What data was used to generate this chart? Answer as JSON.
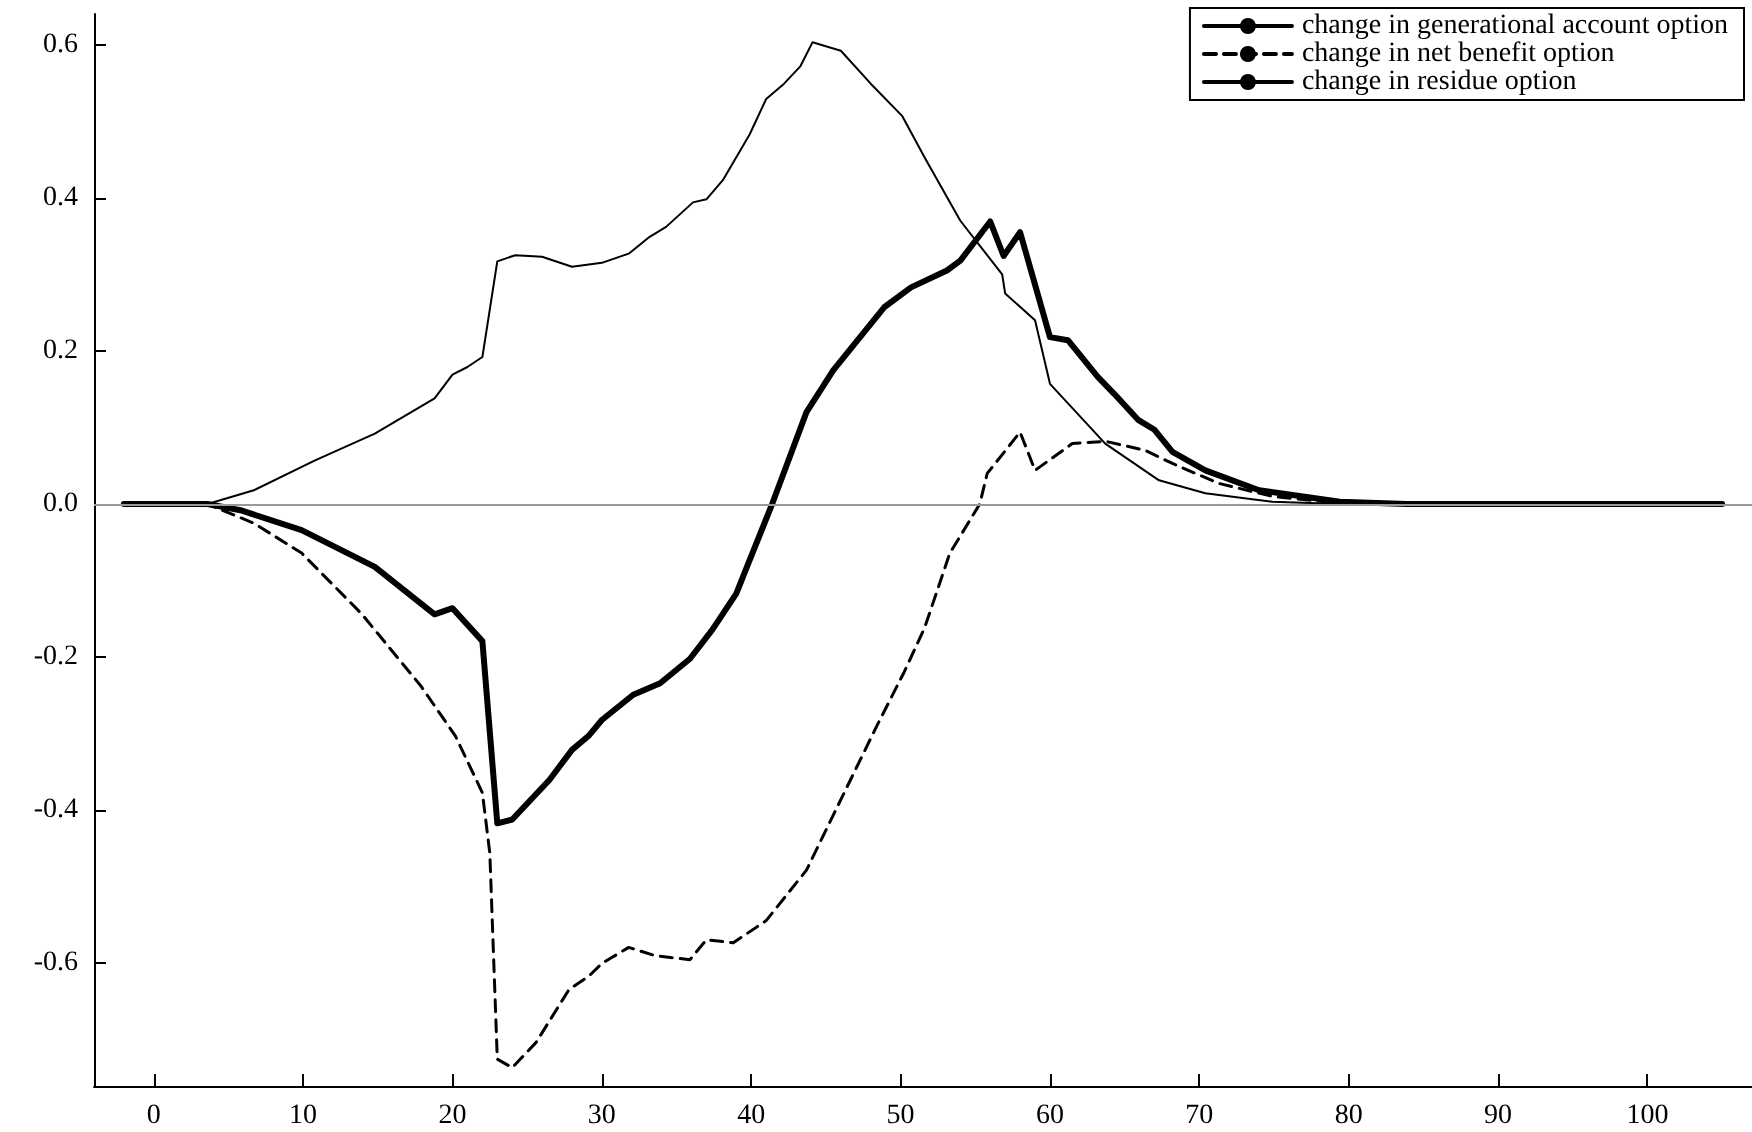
{
  "chart_data": {
    "type": "line",
    "xlim": [
      -4,
      107
    ],
    "xticks": [
      0,
      10,
      20,
      30,
      40,
      50,
      60,
      70,
      80,
      90,
      100
    ],
    "ylim": [
      -0.76,
      0.64
    ],
    "yticks": [
      -0.6,
      -0.4,
      -0.2,
      {
        "value": 0,
        "label": "0.0"
      },
      0.2,
      0.4,
      0.6
    ],
    "grid": false,
    "legend": "top right",
    "marker": "none",
    "ref_lines": [
      {
        "axis": "y",
        "value": 0,
        "color": "#999999"
      }
    ],
    "series": [
      {
        "name": "change in generational account option",
        "color": "#000000",
        "line_style": "solid",
        "x": [
          -2,
          3.6,
          5.8,
          9.9,
          14.8,
          18.8,
          20,
          22,
          23,
          24,
          26.5,
          28,
          29.1,
          30,
          32.1,
          33.9,
          35.9,
          37.4,
          39,
          39.9,
          41.4,
          43.7,
          45.5,
          48.9,
          50.7,
          53.1,
          54,
          56,
          56.9,
          58,
          60,
          61.2,
          63.2,
          64.3,
          65.9,
          67,
          68.2,
          70.4,
          74,
          79.4,
          83.9,
          105
        ],
        "values": [
          0,
          0,
          -0.008,
          -0.034,
          -0.082,
          -0.144,
          -0.136,
          -0.179,
          -0.417,
          -0.412,
          -0.36,
          -0.321,
          -0.303,
          -0.282,
          -0.249,
          -0.234,
          -0.202,
          -0.164,
          -0.117,
          -0.073,
          0,
          0.12,
          0.175,
          0.257,
          0.283,
          0.305,
          0.318,
          0.369,
          0.324,
          0.355,
          0.218,
          0.214,
          0.166,
          0.144,
          0.11,
          0.097,
          0.068,
          0.044,
          0.018,
          0.003,
          0,
          0
        ]
      },
      {
        "name": "change in net benefit option",
        "color": "#000000",
        "line_style": "dashed",
        "x": [
          -2,
          3.6,
          6.7,
          9.9,
          13.9,
          17.9,
          20.2,
          22,
          22.5,
          23,
          24,
          25.6,
          27.8,
          29.1,
          30,
          31.8,
          33.6,
          35.9,
          37,
          38.8,
          41,
          43.7,
          46.4,
          48.4,
          50.2,
          51.6,
          53.3,
          55.3,
          55.8,
          58,
          59,
          61.5,
          63.7,
          66.4,
          68.2,
          71.3,
          74.9,
          79.4,
          105
        ],
        "values": [
          0,
          0,
          -0.025,
          -0.064,
          -0.143,
          -0.238,
          -0.303,
          -0.377,
          -0.456,
          -0.725,
          -0.736,
          -0.703,
          -0.634,
          -0.617,
          -0.6,
          -0.579,
          -0.59,
          -0.595,
          -0.569,
          -0.573,
          -0.544,
          -0.478,
          -0.37,
          -0.29,
          -0.221,
          -0.162,
          -0.064,
          0,
          0.04,
          0.094,
          0.044,
          0.079,
          0.082,
          0.07,
          0.053,
          0.027,
          0.01,
          0.001,
          0
        ]
      },
      {
        "name": "change in residue option",
        "color": "#000000",
        "line_style": "solid",
        "x": [
          -2,
          3.6,
          6.7,
          10.8,
          14.8,
          18.8,
          20,
          21,
          22,
          23,
          24.2,
          26,
          28,
          30,
          31.8,
          33.2,
          34.3,
          36.1,
          37,
          38.1,
          39.9,
          41,
          42.2,
          43.3,
          44.1,
          46,
          48,
          50.1,
          51.6,
          54,
          56.8,
          57,
          59,
          60,
          63.7,
          67.3,
          70.4,
          74.9,
          79.4,
          105
        ],
        "values": [
          0,
          0,
          0.018,
          0.057,
          0.092,
          0.138,
          0.169,
          0.179,
          0.192,
          0.317,
          0.325,
          0.323,
          0.31,
          0.315,
          0.327,
          0.349,
          0.362,
          0.394,
          0.398,
          0.423,
          0.483,
          0.529,
          0.549,
          0.572,
          0.603,
          0.592,
          0.549,
          0.507,
          0.453,
          0.37,
          0.3,
          0.275,
          0.24,
          0.157,
          0.079,
          0.031,
          0.014,
          0.003,
          0,
          0
        ]
      }
    ]
  }
}
